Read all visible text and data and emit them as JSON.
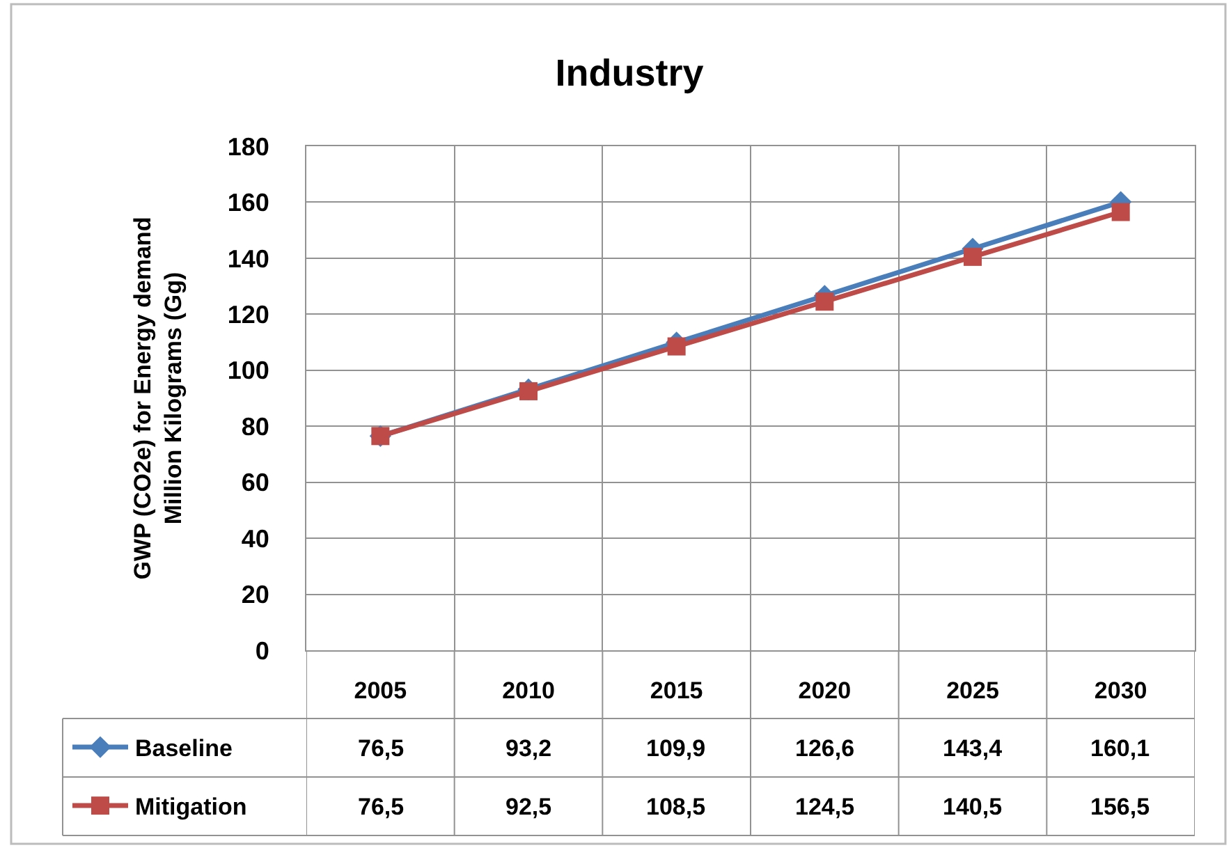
{
  "chart_data": {
    "type": "line",
    "title": "Industry",
    "ylabel": "GWP (CO2e) for Energy demand\nMillion Kilograms (Gg)",
    "categories": [
      "2005",
      "2010",
      "2015",
      "2020",
      "2025",
      "2030"
    ],
    "series": [
      {
        "name": "Baseline",
        "color": "#4a7ebb",
        "marker": "diamond",
        "values": [
          76.5,
          93.2,
          109.9,
          126.6,
          143.4,
          160.1
        ],
        "value_labels": [
          "76,5",
          "93,2",
          "109,9",
          "126,6",
          "143,4",
          "160,1"
        ]
      },
      {
        "name": "Mitigation",
        "color": "#be4b48",
        "marker": "square",
        "values": [
          76.5,
          92.5,
          108.5,
          124.5,
          140.5,
          156.5
        ],
        "value_labels": [
          "76,5",
          "92,5",
          "108,5",
          "124,5",
          "140,5",
          "156,5"
        ]
      }
    ],
    "ylim": [
      0,
      180
    ],
    "yticks": [
      0,
      20,
      40,
      60,
      80,
      100,
      120,
      140,
      160,
      180
    ],
    "grid": true,
    "legend": "bottom left"
  }
}
